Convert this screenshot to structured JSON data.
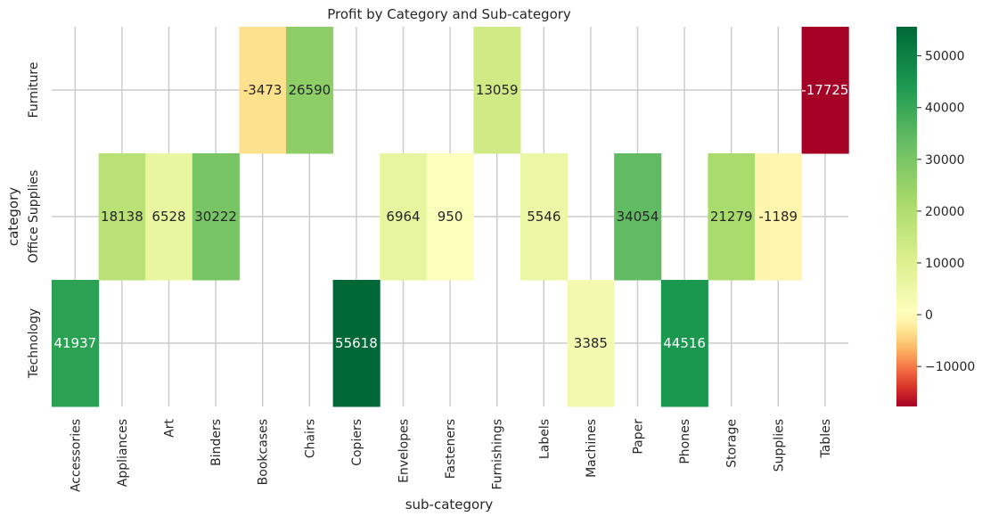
{
  "chart_data": {
    "type": "heatmap",
    "title": "Profit by Category and Sub-category",
    "xlabel": "sub-category",
    "ylabel": "category",
    "x_categories": [
      "Accessories",
      "Appliances",
      "Art",
      "Binders",
      "Bookcases",
      "Chairs",
      "Copiers",
      "Envelopes",
      "Fasteners",
      "Furnishings",
      "Labels",
      "Machines",
      "Paper",
      "Phones",
      "Storage",
      "Supplies",
      "Tables"
    ],
    "y_categories": [
      "Furniture",
      "Office Supplies",
      "Technology"
    ],
    "values": [
      [
        null,
        null,
        null,
        null,
        -3473,
        26590,
        null,
        null,
        null,
        13059,
        null,
        null,
        null,
        null,
        null,
        null,
        -17725
      ],
      [
        null,
        18138,
        6528,
        30222,
        null,
        null,
        null,
        6964,
        950,
        null,
        5546,
        null,
        34054,
        null,
        21279,
        -1189,
        null
      ],
      [
        41937,
        null,
        null,
        null,
        null,
        null,
        55618,
        null,
        null,
        null,
        null,
        3385,
        null,
        44516,
        null,
        null,
        null
      ]
    ],
    "colorbar": {
      "range": [
        -17725,
        55618
      ],
      "ticks": [
        -10000,
        0,
        10000,
        20000,
        30000,
        40000,
        50000
      ],
      "tick_labels": [
        "−10000",
        "0",
        "10000",
        "20000",
        "30000",
        "40000",
        "50000"
      ],
      "colormap": "RdYlGn, centered at 0"
    },
    "grid": true,
    "colors": {
      "min": "#fec877",
      "zero": "#feffbe",
      "max": "#006837",
      "grid": "#cccccc"
    }
  }
}
